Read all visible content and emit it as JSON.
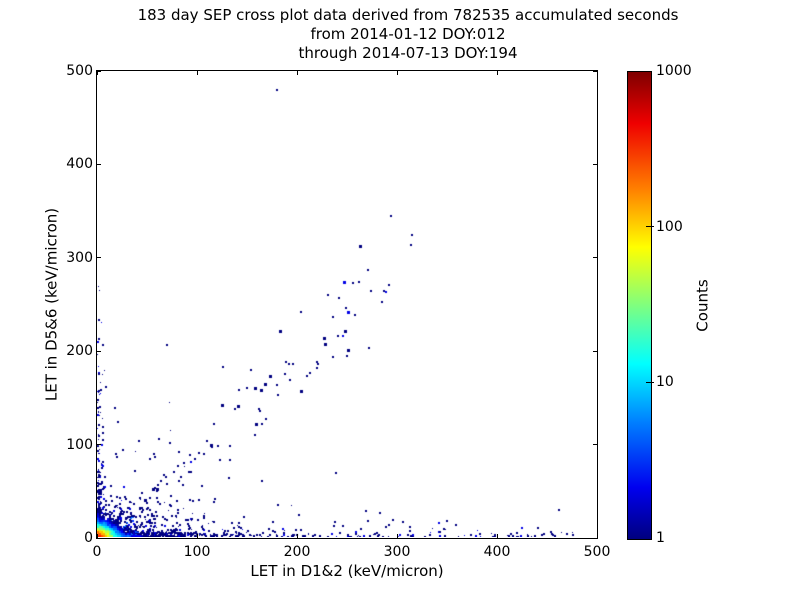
{
  "figure": {
    "title_lines": [
      "183 day SEP cross plot data derived from 782535 accumulated seconds",
      "from 2014-01-12 DOY:012",
      "through 2014-07-13 DOY:194"
    ],
    "background_color": "#ffffff",
    "axis_color": "#000000"
  },
  "chart_data": {
    "type": "scatter",
    "subtype": "2d-histogram-density",
    "title": "183 day SEP cross plot data derived from 782535 accumulated seconds",
    "subtitle_lines": [
      "from 2014-01-12 DOY:012",
      "through 2014-07-13 DOY:194"
    ],
    "xlabel": "LET in D1&2 (keV/micron)",
    "ylabel": "LET in D5&6 (keV/micron)",
    "xlim": [
      0,
      500
    ],
    "ylim": [
      0,
      500
    ],
    "x_ticks": [
      0,
      100,
      200,
      300,
      400,
      500
    ],
    "y_ticks": [
      0,
      100,
      200,
      300,
      400,
      500
    ],
    "grid": false,
    "legend": "none",
    "colorbar": {
      "label": "Counts",
      "scale": "log",
      "min": 1,
      "max": 1000,
      "ticks": [
        1000,
        100,
        10,
        1
      ],
      "colormap": "jet",
      "gradient_top_to_bottom": [
        {
          "pos": 0.0,
          "color": "#7f0000"
        },
        {
          "pos": 0.11,
          "color": "#ef0000"
        },
        {
          "pos": 0.25,
          "color": "#ff7f00"
        },
        {
          "pos": 0.375,
          "color": "#ffff00"
        },
        {
          "pos": 0.5,
          "color": "#7fff7f"
        },
        {
          "pos": 0.625,
          "color": "#00ffff"
        },
        {
          "pos": 0.75,
          "color": "#007fff"
        },
        {
          "pos": 0.89,
          "color": "#0000ef"
        },
        {
          "pos": 1.0,
          "color": "#00007f"
        }
      ]
    },
    "point_color_single_count": "#00007f",
    "density_model": {
      "description": "Hot 2D-histogram core at origin (orange/yellow -> green -> cyan -> blue), dense low-LET band along x-axis out to ~480, vertical band along y-axis up to ~290, sparse diagonal band of coincident events up to ~300, isolated single-count outliers",
      "seed": 20140112,
      "bin_size_units": 2,
      "core": {
        "amplitude": 650,
        "r0": 3.2,
        "x_stretch": 1.35,
        "extent_x_bins": 30,
        "extent_y_bins": 16
      },
      "x_axis_boost": {
        "amplitude": 45,
        "x_tau": 14,
        "y_tau": 2.6
      },
      "y_axis_boost": {
        "amplitude": 14,
        "y_tau": 11,
        "x_tau": 2.6
      },
      "x_band": {
        "n": 620,
        "x_tau": 55,
        "x_uniform_frac": 0.22,
        "x_max": 478,
        "y_tau": 3.2
      },
      "near_fuzz": {
        "n": 260,
        "x_tau": 28,
        "y_tau": 14
      },
      "y_band": {
        "n": 150,
        "y_tau": 70,
        "y_max": 292,
        "x_tau": 2.4
      },
      "diagonal": {
        "n": 95,
        "min": 12,
        "max": 295,
        "pow": 1.6,
        "slope": 0.92,
        "spread": 0.36
      },
      "field": {
        "n": 120,
        "x_tau": 75,
        "y_tau": 42
      }
    },
    "outliers": [
      [
        179,
        480
      ],
      [
        293,
        344
      ],
      [
        314,
        324
      ],
      [
        255,
        272
      ],
      [
        291,
        270
      ],
      [
        284,
        252
      ],
      [
        125,
        182
      ],
      [
        149,
        160
      ]
    ]
  }
}
